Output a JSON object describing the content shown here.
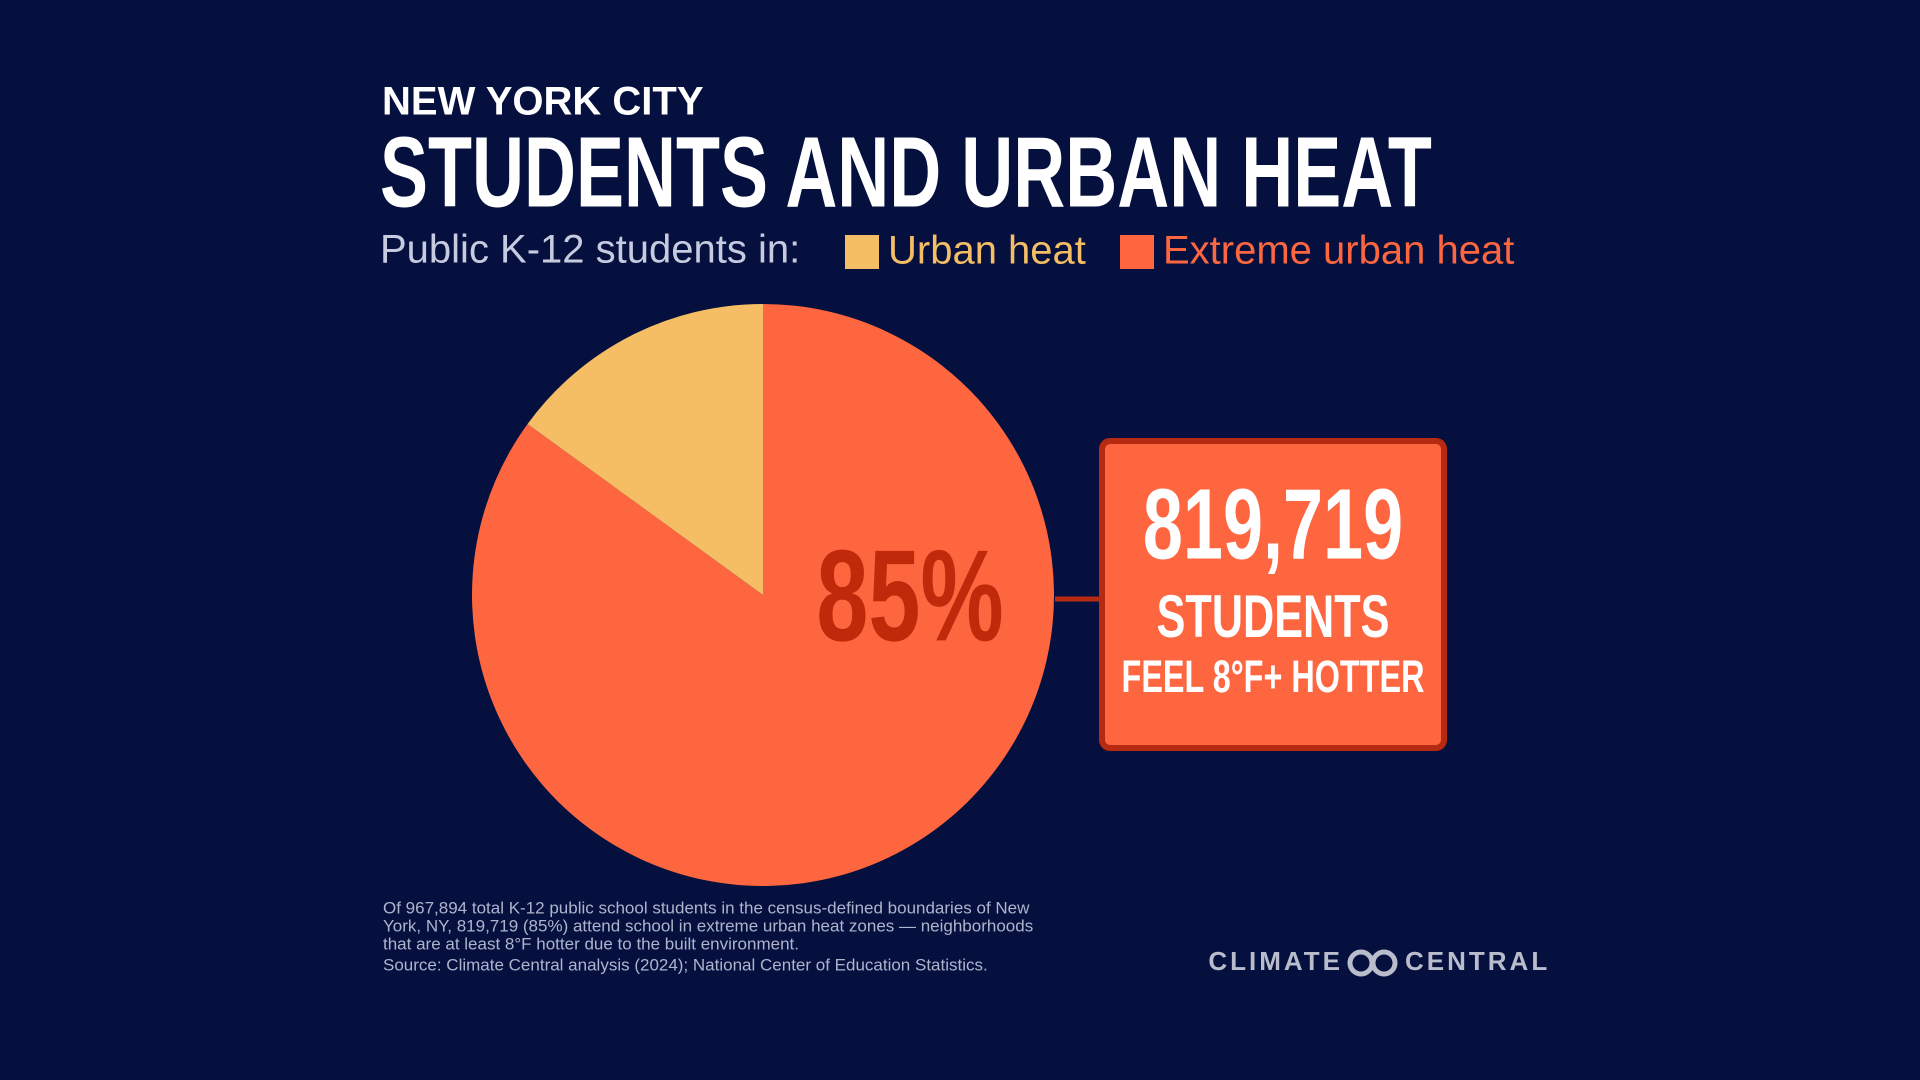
{
  "chart_data": {
    "type": "pie",
    "subtitle": "NEW YORK CITY",
    "title": "STUDENTS AND URBAN HEAT",
    "legend_title": "Public K-12 students in:",
    "categories": [
      "Urban heat",
      "Extreme urban heat"
    ],
    "values": [
      15,
      85
    ],
    "value_labels": [
      null,
      "85%"
    ],
    "colors": [
      "#f5be64",
      "#fe6640"
    ],
    "callout": {
      "number": "819,719",
      "line1": "STUDENTS",
      "line2": "FEEL 8°F+ HOTTER"
    }
  },
  "notes": [
    "Of 967,894 total K-12 public school students in the census-defined boundaries of New",
    "York, NY, 819,719 (85%) attend school in extreme urban heat zones — neighborhoods",
    "that are at least 8°F hotter due to the built environment."
  ],
  "source": "Source: Climate Central analysis (2024); National Center of Education Statistics.",
  "logo": {
    "left": "CLIMATE",
    "right": "CENTRAL"
  }
}
